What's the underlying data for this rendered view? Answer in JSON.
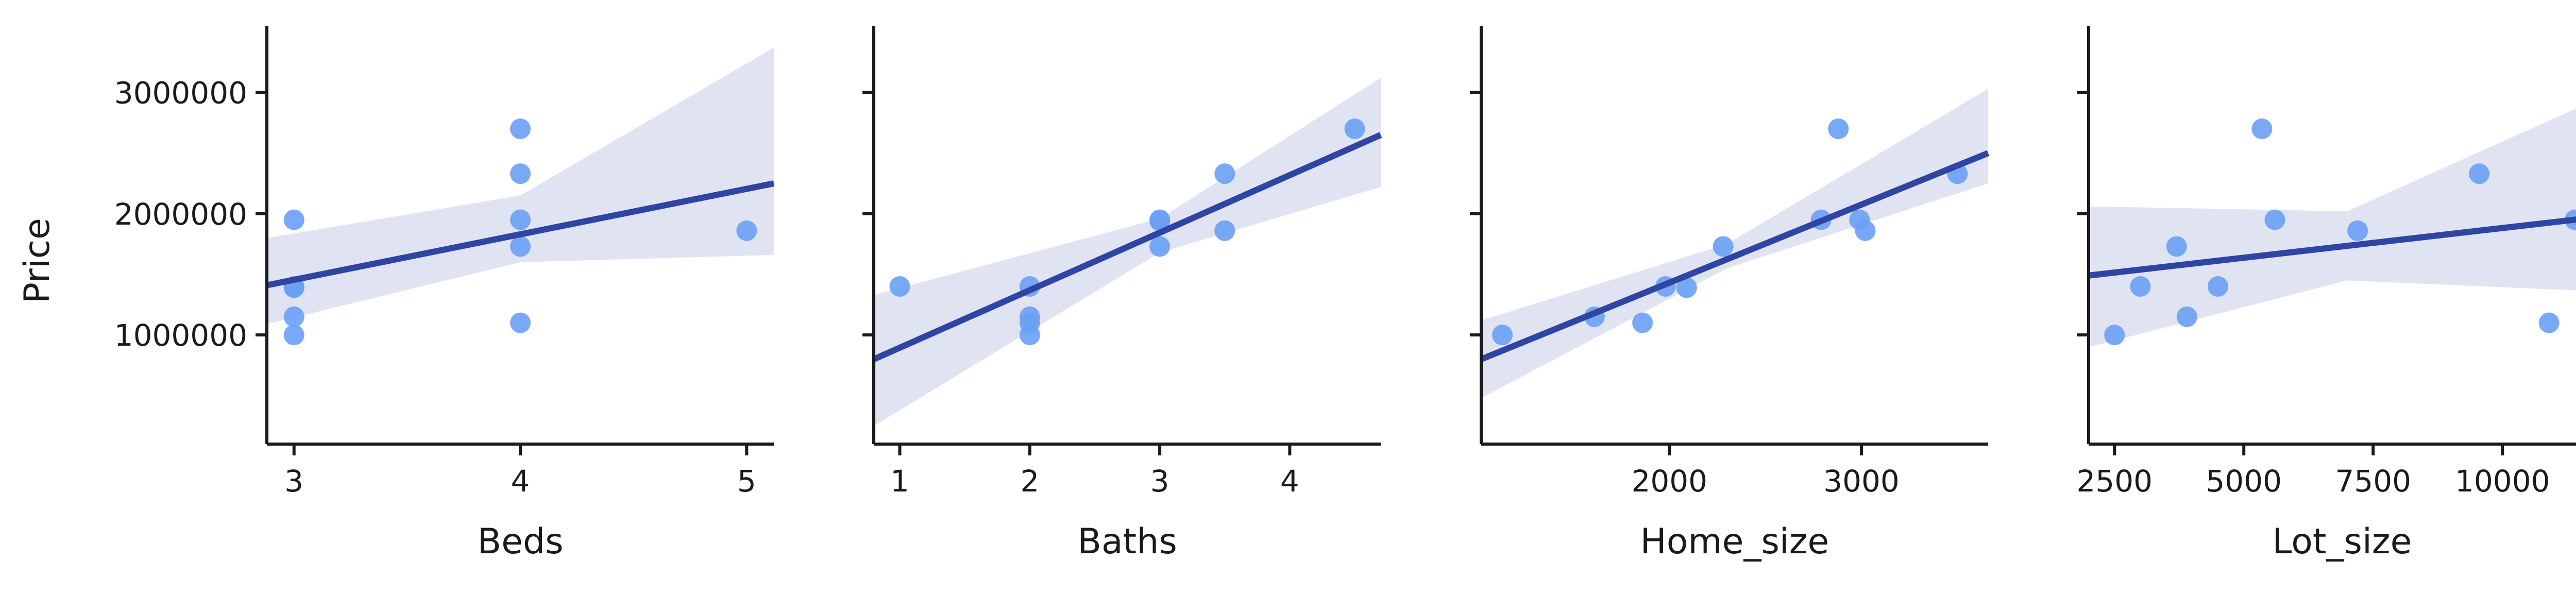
{
  "chart_data": [
    {
      "type": "scatter",
      "xlabel": "Beds",
      "ylabel": "Price",
      "xlim": [
        2.88,
        5.12
      ],
      "ylim": [
        100000,
        3550000
      ],
      "xticks": [
        3,
        4,
        5
      ],
      "xtick_labels": [
        "3",
        "4",
        "5"
      ],
      "yticks": [
        1000000,
        2000000,
        3000000
      ],
      "ytick_labels": [
        "1000000",
        "2000000",
        "3000000"
      ],
      "points": [
        [
          3,
          1950000
        ],
        [
          3,
          1400000
        ],
        [
          3,
          1390000
        ],
        [
          3,
          1150000
        ],
        [
          3,
          1000000
        ],
        [
          4,
          2700000
        ],
        [
          4,
          2330000
        ],
        [
          4,
          1950000
        ],
        [
          4,
          1730000
        ],
        [
          4,
          1100000
        ],
        [
          5,
          1860000
        ]
      ],
      "regression": {
        "x": [
          2.88,
          5.12
        ],
        "y": [
          1410000,
          2250000
        ]
      },
      "ci_band": {
        "x": [
          2.88,
          4.0,
          5.12
        ],
        "lower": [
          1090000,
          1600000,
          1660000
        ],
        "upper": [
          1800000,
          2150000,
          3370000
        ]
      },
      "grid": false,
      "legend": "none"
    },
    {
      "type": "scatter",
      "xlabel": "Baths",
      "ylabel": "",
      "xlim": [
        0.8,
        4.7
      ],
      "ylim": [
        100000,
        3550000
      ],
      "xticks": [
        1,
        2,
        3,
        4
      ],
      "xtick_labels": [
        "1",
        "2",
        "3",
        "4"
      ],
      "yticks": [
        1000000,
        2000000,
        3000000
      ],
      "ytick_labels": [
        "",
        "",
        ""
      ],
      "points": [
        [
          1,
          1400000
        ],
        [
          2,
          1400000
        ],
        [
          2,
          1150000
        ],
        [
          2,
          1100000
        ],
        [
          2,
          1000000
        ],
        [
          3,
          1950000
        ],
        [
          3,
          1940000
        ],
        [
          3,
          1730000
        ],
        [
          3.5,
          2330000
        ],
        [
          3.5,
          1860000
        ],
        [
          4.5,
          2700000
        ]
      ],
      "regression": {
        "x": [
          0.8,
          4.7
        ],
        "y": [
          800000,
          2650000
        ]
      },
      "ci_band": {
        "x": [
          0.8,
          3.0,
          4.7
        ],
        "lower": [
          250000,
          1680000,
          2220000
        ],
        "upper": [
          1330000,
          1960000,
          3120000
        ]
      },
      "grid": false,
      "legend": "none"
    },
    {
      "type": "scatter",
      "xlabel": "Home_size",
      "ylabel": "",
      "xlim": [
        1020,
        3660
      ],
      "ylim": [
        100000,
        3550000
      ],
      "xticks": [
        2000,
        3000
      ],
      "xtick_labels": [
        "2000",
        "3000"
      ],
      "yticks": [
        1000000,
        2000000,
        3000000
      ],
      "ytick_labels": [
        "",
        "",
        ""
      ],
      "points": [
        [
          1130,
          1000000
        ],
        [
          1610,
          1150000
        ],
        [
          1860,
          1100000
        ],
        [
          1980,
          1400000
        ],
        [
          2090,
          1390000
        ],
        [
          2280,
          1730000
        ],
        [
          2790,
          1950000
        ],
        [
          2880,
          2700000
        ],
        [
          2990,
          1950000
        ],
        [
          3020,
          1860000
        ],
        [
          3500,
          2330000
        ]
      ],
      "regression": {
        "x": [
          1020,
          3660
        ],
        "y": [
          800000,
          2500000
        ]
      },
      "ci_band": {
        "x": [
          1020,
          2300,
          3660
        ],
        "lower": [
          480000,
          1550000,
          2250000
        ],
        "upper": [
          1120000,
          1750000,
          3030000
        ]
      },
      "grid": false,
      "legend": "none"
    },
    {
      "type": "scatter",
      "xlabel": "Lot_size",
      "ylabel": "",
      "xlim": [
        2000,
        11800
      ],
      "ylim": [
        100000,
        3550000
      ],
      "xticks": [
        2500,
        5000,
        7500,
        10000
      ],
      "xtick_labels": [
        "2500",
        "5000",
        "7500",
        "10000"
      ],
      "yticks": [
        1000000,
        2000000,
        3000000
      ],
      "ytick_labels": [
        "",
        "",
        ""
      ],
      "points": [
        [
          2500,
          1000000
        ],
        [
          3000,
          1400000
        ],
        [
          3700,
          1730000
        ],
        [
          3900,
          1150000
        ],
        [
          4500,
          1400000
        ],
        [
          5350,
          2700000
        ],
        [
          5600,
          1950000
        ],
        [
          7200,
          1860000
        ],
        [
          9550,
          2330000
        ],
        [
          10900,
          1100000
        ],
        [
          11400,
          1950000
        ]
      ],
      "regression": {
        "x": [
          2000,
          11800
        ],
        "y": [
          1490000,
          1970000
        ]
      },
      "ci_band": {
        "x": [
          2000,
          7000,
          11800
        ],
        "lower": [
          900000,
          1450000,
          1360000
        ],
        "upper": [
          2060000,
          2020000,
          2940000
        ]
      },
      "grid": false,
      "legend": "none"
    }
  ],
  "colors": {
    "point": "#6aa0f5",
    "line": "#2f45a3",
    "band": "#e0e3f2",
    "axis": "#1a1a1a"
  }
}
